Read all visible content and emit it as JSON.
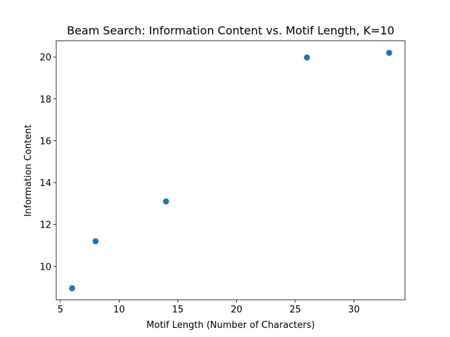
{
  "chart_data": {
    "type": "scatter",
    "title": "Beam Search: Information Content vs. Motif Length, K=10",
    "xlabel": "Motif Length (Number of Characters)",
    "ylabel": "Information Content",
    "x": [
      6,
      8,
      14,
      26,
      33
    ],
    "y": [
      8.95,
      11.2,
      13.1,
      19.98,
      20.2
    ],
    "xlim": [
      4.65,
      34.35
    ],
    "ylim": [
      8.4,
      20.78
    ],
    "xticks": [
      5,
      10,
      15,
      20,
      25,
      30
    ],
    "yticks": [
      10,
      12,
      14,
      16,
      18,
      20
    ],
    "grid": false,
    "marker_color": "#1f77b4"
  }
}
